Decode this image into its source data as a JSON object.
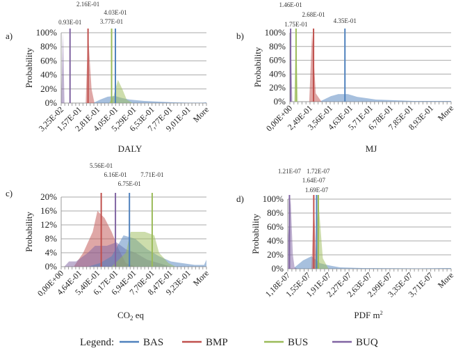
{
  "legend": {
    "title": "Legend:",
    "items": [
      {
        "name": "BAS",
        "color": "#4f81bd"
      },
      {
        "name": "BMP",
        "color": "#c0504d"
      },
      {
        "name": "BUS",
        "color": "#9bbb59"
      },
      {
        "name": "BUQ",
        "color": "#8064a2"
      }
    ]
  },
  "chart_data": [
    {
      "panel": "a)",
      "type": "area",
      "xlabel": "DALY",
      "ylabel": "Probability",
      "ylim": [
        0,
        100
      ],
      "yticks": [
        "0%",
        "20%",
        "40%",
        "60%",
        "80%",
        "100%"
      ],
      "xlim": [
        0.0325,
        1.025
      ],
      "xticks": [
        "3,25E-02",
        "1,57E-01",
        "2,81E-01",
        "4,05E-01",
        "5,29E-01",
        "6,53E-01",
        "7,77E-01",
        "9,01E-01",
        "More"
      ],
      "grid": true,
      "means": [
        {
          "series": "BUQ",
          "value": 0.093,
          "label": "0.93E-01"
        },
        {
          "series": "BMP",
          "value": 0.216,
          "label": "2.16E-01"
        },
        {
          "series": "BAS",
          "value": 0.403,
          "label": "4.03E-01"
        },
        {
          "series": "BUS",
          "value": 0.377,
          "label": "3.77E-01"
        }
      ],
      "series": [
        {
          "name": "BAS",
          "points": [
            [
              0.25,
              0
            ],
            [
              0.3,
              5
            ],
            [
              0.35,
              9
            ],
            [
              0.4,
              10
            ],
            [
              0.45,
              7
            ],
            [
              0.5,
              5
            ],
            [
              0.55,
              4
            ],
            [
              0.6,
              3
            ],
            [
              0.7,
              2
            ],
            [
              0.8,
              1
            ],
            [
              0.9,
              0.5
            ],
            [
              1.0,
              0.5
            ],
            [
              1.025,
              1
            ]
          ]
        },
        {
          "name": "BUS",
          "points": [
            [
              0.36,
              0
            ],
            [
              0.39,
              10
            ],
            [
              0.42,
              33
            ],
            [
              0.45,
              20
            ],
            [
              0.48,
              5
            ],
            [
              0.52,
              0
            ]
          ]
        },
        {
          "name": "BMP",
          "points": [
            [
              0.2,
              0
            ],
            [
              0.216,
              100
            ],
            [
              0.24,
              20
            ],
            [
              0.26,
              0
            ]
          ]
        },
        {
          "name": "BUQ",
          "points": [
            [
              0.0325,
              0
            ],
            [
              0.045,
              100
            ],
            [
              0.055,
              0
            ]
          ]
        }
      ]
    },
    {
      "panel": "b)",
      "type": "area",
      "xlabel": "MJ",
      "ylabel": "Probability",
      "ylim": [
        0,
        100
      ],
      "yticks": [
        "0%",
        "20%",
        "40%",
        "60%",
        "80%",
        "100%"
      ],
      "xlim": [
        0.142,
        1.0
      ],
      "xticks": [
        "0,00E+00",
        "2,49E-01",
        "3,56E-01",
        "4,63E-01",
        "5,71E-01",
        "6,78E-01",
        "7,85E-01",
        "8,93E-01",
        "More"
      ],
      "grid": true,
      "means": [
        {
          "series": "BUQ",
          "value": 0.146,
          "label": "1.46E-01"
        },
        {
          "series": "BUS",
          "value": 0.175,
          "label": "1.75E-01"
        },
        {
          "series": "BMP",
          "value": 0.268,
          "label": "2.68E-01"
        },
        {
          "series": "BAS",
          "value": 0.435,
          "label": "4.35E-01"
        }
      ],
      "series": [
        {
          "name": "BAS",
          "points": [
            [
              0.3,
              0
            ],
            [
              0.36,
              8
            ],
            [
              0.4,
              11
            ],
            [
              0.45,
              11
            ],
            [
              0.5,
              7
            ],
            [
              0.55,
              5
            ],
            [
              0.6,
              3
            ],
            [
              0.7,
              2
            ],
            [
              0.8,
              1
            ],
            [
              1.0,
              1
            ]
          ]
        },
        {
          "name": "BMP",
          "points": [
            [
              0.245,
              0
            ],
            [
              0.26,
              100
            ],
            [
              0.28,
              12
            ],
            [
              0.31,
              0
            ]
          ]
        },
        {
          "name": "BUS",
          "points": [
            [
              0.165,
              0
            ],
            [
              0.175,
              100
            ],
            [
              0.185,
              0
            ]
          ]
        },
        {
          "name": "BUQ",
          "points": [
            [
              0.142,
              0
            ],
            [
              0.146,
              100
            ],
            [
              0.155,
              0
            ]
          ]
        }
      ]
    },
    {
      "panel": "c)",
      "type": "area",
      "xlabel": "CO",
      "xlabel_sub": "2",
      "xlabel_rest": " eq",
      "ylabel": "Probability",
      "ylim": [
        0,
        20
      ],
      "yticks": [
        "0%",
        "4%",
        "8%",
        "12%",
        "16%",
        "20%"
      ],
      "xlim": [
        0.387,
        1.0
      ],
      "xticks": [
        "0,00E+00",
        "4,64E-01",
        "5,40E-01",
        "6,17E-01",
        "6,94E-01",
        "7,70E-01",
        "8,47E-01",
        "9,23E-01",
        "More"
      ],
      "grid": true,
      "means": [
        {
          "series": "BMP",
          "value": 0.556,
          "label": "5.56E-01"
        },
        {
          "series": "BUQ",
          "value": 0.616,
          "label": "6.16E-01"
        },
        {
          "series": "BAS",
          "value": 0.675,
          "label": "6.75E-01"
        },
        {
          "series": "BUS",
          "value": 0.771,
          "label": "7.71E-01"
        }
      ],
      "series": [
        {
          "name": "BMP",
          "points": [
            [
              0.44,
              0
            ],
            [
              0.48,
              4
            ],
            [
              0.52,
              10
            ],
            [
              0.54,
              16
            ],
            [
              0.57,
              14
            ],
            [
              0.6,
              10
            ],
            [
              0.63,
              5
            ],
            [
              0.66,
              1
            ],
            [
              0.7,
              0
            ]
          ]
        },
        {
          "name": "BUQ",
          "points": [
            [
              0.4,
              0
            ],
            [
              0.42,
              1.5
            ],
            [
              0.45,
              1.5
            ],
            [
              0.5,
              4
            ],
            [
              0.53,
              6
            ],
            [
              0.58,
              6
            ],
            [
              0.62,
              7
            ],
            [
              0.66,
              5
            ],
            [
              0.7,
              4
            ],
            [
              0.75,
              2
            ],
            [
              0.8,
              1
            ],
            [
              0.85,
              0
            ]
          ]
        },
        {
          "name": "BAS",
          "points": [
            [
              0.5,
              0
            ],
            [
              0.55,
              1
            ],
            [
              0.6,
              3
            ],
            [
              0.65,
              9
            ],
            [
              0.7,
              8
            ],
            [
              0.75,
              5
            ],
            [
              0.8,
              3
            ],
            [
              0.85,
              1.5
            ],
            [
              0.9,
              1
            ],
            [
              0.95,
              0.5
            ],
            [
              0.99,
              0.5
            ],
            [
              1.0,
              2
            ]
          ]
        },
        {
          "name": "BUS",
          "points": [
            [
              0.6,
              0
            ],
            [
              0.66,
              4
            ],
            [
              0.68,
              10
            ],
            [
              0.74,
              10
            ],
            [
              0.78,
              9
            ],
            [
              0.8,
              4
            ],
            [
              0.84,
              1
            ],
            [
              0.87,
              0
            ]
          ]
        }
      ]
    },
    {
      "panel": "d)",
      "type": "area",
      "xlabel": "PDF m",
      "xlabel_sup": "2",
      "ylabel": "Probability",
      "ylim": [
        0,
        100
      ],
      "yticks": [
        "0%",
        "20%",
        "40%",
        "60%",
        "80%",
        "100%"
      ],
      "xlim": [
        1.18e-07,
        4.07e-07
      ],
      "xticks": [
        "1,18E-07",
        "1,55E-07",
        "1,91E-07",
        "2,27E-07",
        "2,63E-07",
        "2,99E-07",
        "3,35E-07",
        "3,71E-07",
        "More"
      ],
      "grid": true,
      "means": [
        {
          "series": "BUQ",
          "value": 1.21e-07,
          "label": "1.21E-07"
        },
        {
          "series": "BMP",
          "value": 1.64e-07,
          "label": "1.64E-07"
        },
        {
          "series": "BAS",
          "value": 1.69e-07,
          "label": "1.69E-07"
        },
        {
          "series": "BUS",
          "value": 1.72e-07,
          "label": "1.72E-07"
        }
      ],
      "series": [
        {
          "name": "BAS",
          "points": [
            [
              1.3e-07,
              2
            ],
            [
              1.45e-07,
              12
            ],
            [
              1.6e-07,
              18
            ],
            [
              1.75e-07,
              8
            ],
            [
              1.9e-07,
              5
            ],
            [
              2.1e-07,
              2
            ],
            [
              2.5e-07,
              1
            ],
            [
              3.5e-07,
              0.5
            ],
            [
              4.07e-07,
              1
            ]
          ]
        },
        {
          "name": "BUQ",
          "points": [
            [
              1.18e-07,
              40
            ],
            [
              1.23e-07,
              100
            ],
            [
              1.27e-07,
              20
            ],
            [
              1.3e-07,
              2
            ],
            [
              1.35e-07,
              0
            ]
          ]
        },
        {
          "name": "BMP",
          "points": [
            [
              1.6e-07,
              0
            ],
            [
              1.64e-07,
              100
            ],
            [
              1.68e-07,
              20
            ],
            [
              1.72e-07,
              0
            ]
          ]
        },
        {
          "name": "BUS",
          "points": [
            [
              1.66e-07,
              0
            ],
            [
              1.72e-07,
              100
            ],
            [
              1.8e-07,
              15
            ],
            [
              1.9e-07,
              0
            ]
          ]
        }
      ]
    }
  ]
}
